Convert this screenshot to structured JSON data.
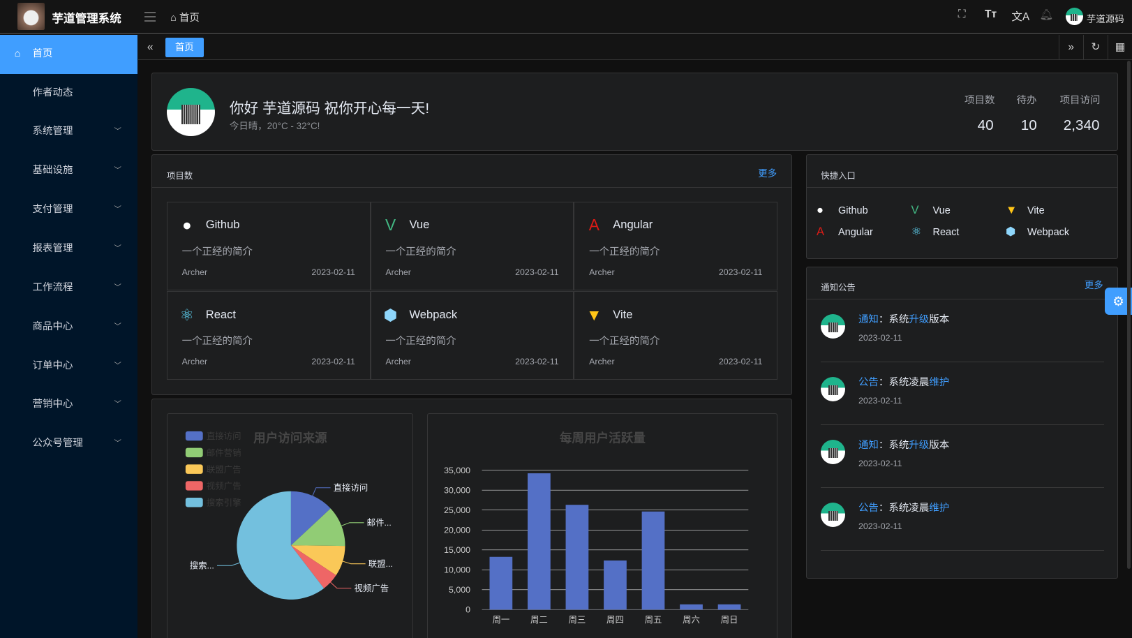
{
  "header": {
    "app_title": "芋道管理系统",
    "breadcrumb": "首页",
    "user_name": "芋道源码"
  },
  "sidebar": {
    "items": [
      {
        "label": "首页",
        "active": true
      },
      {
        "label": "作者动态"
      },
      {
        "label": "系统管理",
        "expandable": true
      },
      {
        "label": "基础设施",
        "expandable": true
      },
      {
        "label": "支付管理",
        "expandable": true
      },
      {
        "label": "报表管理",
        "expandable": true
      },
      {
        "label": "工作流程",
        "expandable": true
      },
      {
        "label": "商品中心",
        "expandable": true
      },
      {
        "label": "订单中心",
        "expandable": true
      },
      {
        "label": "营销中心",
        "expandable": true
      },
      {
        "label": "公众号管理",
        "expandable": true
      }
    ]
  },
  "tabs": {
    "items": [
      {
        "label": "首页"
      }
    ]
  },
  "welcome": {
    "greeting": "你好 芋道源码 祝你开心每一天!",
    "weather": "今日晴，20°C - 32°C!",
    "stats": [
      {
        "label": "项目数",
        "value": "40"
      },
      {
        "label": "待办",
        "value": "10"
      },
      {
        "label": "项目访问",
        "value": "2,340"
      }
    ]
  },
  "projects": {
    "title": "项目数",
    "more": "更多",
    "items": [
      {
        "name": "Github",
        "icon": "github-icon",
        "color": "#ffffff",
        "desc": "一个正经的简介",
        "author": "Archer",
        "date": "2023-02-11"
      },
      {
        "name": "Vue",
        "icon": "vue-icon",
        "color": "#42b883",
        "desc": "一个正经的简介",
        "author": "Archer",
        "date": "2023-02-11"
      },
      {
        "name": "Angular",
        "icon": "angular-icon",
        "color": "#dd1b16",
        "desc": "一个正经的简介",
        "author": "Archer",
        "date": "2023-02-11"
      },
      {
        "name": "React",
        "icon": "react-icon",
        "color": "#61dafb",
        "desc": "一个正经的简介",
        "author": "Archer",
        "date": "2023-02-11"
      },
      {
        "name": "Webpack",
        "icon": "webpack-icon",
        "color": "#8ed6fb",
        "desc": "一个正经的简介",
        "author": "Archer",
        "date": "2023-02-11"
      },
      {
        "name": "Vite",
        "icon": "vite-icon",
        "color": "#ffc517",
        "desc": "一个正经的简介",
        "author": "Archer",
        "date": "2023-02-11"
      }
    ]
  },
  "quick": {
    "title": "快捷入口",
    "items": [
      {
        "name": "Github"
      },
      {
        "name": "Vue"
      },
      {
        "name": "Vite"
      },
      {
        "name": "Angular"
      },
      {
        "name": "React"
      },
      {
        "name": "Webpack"
      }
    ]
  },
  "notices": {
    "title": "通知公告",
    "more": "更多",
    "items": [
      {
        "type": "通知",
        "sep": "：",
        "pre": "系统",
        "hl": "升级",
        "post": "版本",
        "date": "2023-02-11"
      },
      {
        "type": "公告",
        "sep": "：",
        "pre": "系统凌晨",
        "hl": "维护",
        "post": "",
        "date": "2023-02-11"
      },
      {
        "type": "通知",
        "sep": "：",
        "pre": "系统",
        "hl": "升级",
        "post": "版本",
        "date": "2023-02-11"
      },
      {
        "type": "公告",
        "sep": "：",
        "pre": "系统凌晨",
        "hl": "维护",
        "post": "",
        "date": "2023-02-11"
      }
    ]
  },
  "chart_data": [
    {
      "type": "pie",
      "title": "用户访问来源",
      "legend_position": "top-left",
      "categories": [
        "直接访问",
        "邮件营销",
        "联盟广告",
        "视频广告",
        "搜索引擎"
      ],
      "slice_labels": [
        "直接访问",
        "邮件...",
        "联盟...",
        "视频广告",
        "搜索..."
      ],
      "values": [
        335,
        310,
        234,
        135,
        1548
      ],
      "colors": [
        "#5470c6",
        "#91cc75",
        "#fac858",
        "#ee6666",
        "#73c0de"
      ]
    },
    {
      "type": "bar",
      "title": "每周用户活跃量",
      "categories": [
        "周一",
        "周二",
        "周三",
        "周四",
        "周五",
        "周六",
        "周日"
      ],
      "values": [
        13253,
        34235,
        26321,
        12340,
        24643,
        1322,
        1324
      ],
      "ylim": [
        0,
        35000
      ],
      "yticks": [
        "0",
        "5,000",
        "10,000",
        "15,000",
        "20,000",
        "25,000",
        "30,000",
        "35,000"
      ],
      "grid": true,
      "color": "#5470c6"
    }
  ]
}
